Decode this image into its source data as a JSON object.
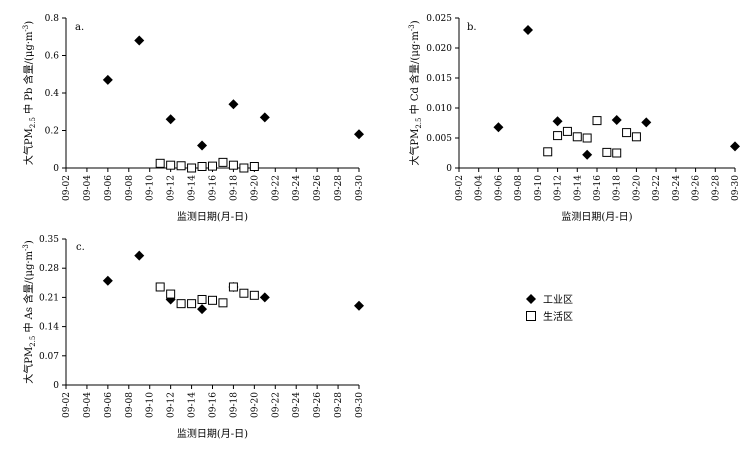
{
  "chart_data": [
    {
      "type": "scatter",
      "panel_label": "a.",
      "ylabel_main": "大气PM",
      "ylabel_sub": "2.5",
      "ylabel_rest": " 中 Pb 含量/(μg·m",
      "ylabel_sup": "-3",
      "ylabel_end": ")",
      "xlabel": "监测日期(月-日)",
      "ylim": [
        0,
        0.8
      ],
      "yticks": [
        "0",
        "0.2",
        "0.4",
        "0.6",
        "0.8"
      ],
      "ytick_values": [
        0,
        0.2,
        0.4,
        0.6,
        0.8
      ],
      "xticks": [
        "09-02",
        "09-04",
        "09-06",
        "09-08",
        "09-10",
        "09-12",
        "09-14",
        "09-16",
        "09-18",
        "09-20",
        "09-22",
        "09-24",
        "09-26",
        "09-28",
        "09-30"
      ],
      "grid": false,
      "series": [
        {
          "name": "工业区",
          "marker": "diamond",
          "x": [
            "09-06",
            "09-09",
            "09-12",
            "09-15",
            "09-18",
            "09-21",
            "09-30"
          ],
          "y": [
            0.47,
            0.68,
            0.26,
            0.12,
            0.34,
            0.27,
            0.18
          ]
        },
        {
          "name": "生活区",
          "marker": "square",
          "x": [
            "09-11",
            "09-12",
            "09-13",
            "09-14",
            "09-15",
            "09-16",
            "09-17",
            "09-18",
            "09-19",
            "09-20"
          ],
          "y": [
            0.025,
            0.015,
            0.012,
            0.0,
            0.008,
            0.01,
            0.03,
            0.015,
            0.0,
            0.008
          ]
        }
      ]
    },
    {
      "type": "scatter",
      "panel_label": "b.",
      "ylabel_main": "大气PM",
      "ylabel_sub": "2.5",
      "ylabel_rest": " 中 Cd 含量/(μg·m",
      "ylabel_sup": "-3",
      "ylabel_end": ")",
      "xlabel": "监测日期(月-日)",
      "ylim": [
        0,
        0.025
      ],
      "yticks": [
        "0",
        "0.005",
        "0.010",
        "0.015",
        "0.020",
        "0.025"
      ],
      "ytick_values": [
        0,
        0.005,
        0.01,
        0.015,
        0.02,
        0.025
      ],
      "xticks": [
        "09-02",
        "09-04",
        "09-06",
        "09-08",
        "09-10",
        "09-12",
        "09-14",
        "09-16",
        "09-18",
        "09-20",
        "09-22",
        "09-24",
        "09-26",
        "09-28",
        "09-30"
      ],
      "grid": false,
      "series": [
        {
          "name": "工业区",
          "marker": "diamond",
          "x": [
            "09-06",
            "09-09",
            "09-12",
            "09-15",
            "09-18",
            "09-21",
            "09-30"
          ],
          "y": [
            0.0068,
            0.023,
            0.0078,
            0.0022,
            0.008,
            0.0076,
            0.0036
          ]
        },
        {
          "name": "生活区",
          "marker": "square",
          "x": [
            "09-11",
            "09-12",
            "09-13",
            "09-14",
            "09-15",
            "09-16",
            "09-17",
            "09-18",
            "09-19",
            "09-20"
          ],
          "y": [
            0.0027,
            0.0054,
            0.0061,
            0.0052,
            0.005,
            0.0079,
            0.0026,
            0.0025,
            0.0059,
            0.0052
          ]
        }
      ]
    },
    {
      "type": "scatter",
      "panel_label": "c.",
      "ylabel_main": "大气PM",
      "ylabel_sub": "2.5",
      "ylabel_rest": " 中 As 含量/(μg·m",
      "ylabel_sup": "-3",
      "ylabel_end": ")",
      "xlabel": "监测日期(月-日)",
      "ylim": [
        0,
        0.35
      ],
      "yticks": [
        "0",
        "0.07",
        "0.14",
        "0.21",
        "0.28",
        "0.35"
      ],
      "ytick_values": [
        0,
        0.07,
        0.14,
        0.21,
        0.28,
        0.35
      ],
      "xticks": [
        "09-02",
        "09-04",
        "09-06",
        "09-08",
        "09-10",
        "09-12",
        "09-14",
        "09-16",
        "09-18",
        "09-20",
        "09-22",
        "09-24",
        "09-26",
        "09-28",
        "09-30"
      ],
      "grid": false,
      "series": [
        {
          "name": "工业区",
          "marker": "diamond",
          "x": [
            "09-06",
            "09-09",
            "09-12",
            "09-15",
            "09-18",
            "09-21",
            "09-30"
          ],
          "y": [
            0.25,
            0.31,
            0.205,
            0.182,
            0.235,
            0.21,
            0.19
          ]
        },
        {
          "name": "生活区",
          "marker": "square",
          "x": [
            "09-11",
            "09-12",
            "09-13",
            "09-14",
            "09-15",
            "09-16",
            "09-17",
            "09-18",
            "09-19",
            "09-20"
          ],
          "y": [
            0.235,
            0.218,
            0.195,
            0.195,
            0.205,
            0.203,
            0.197,
            0.235,
            0.22,
            0.215
          ]
        }
      ]
    }
  ],
  "legend": {
    "placement": "right",
    "items": [
      {
        "label": "工业区",
        "marker": "diamond"
      },
      {
        "label": "生活区",
        "marker": "square"
      }
    ]
  }
}
